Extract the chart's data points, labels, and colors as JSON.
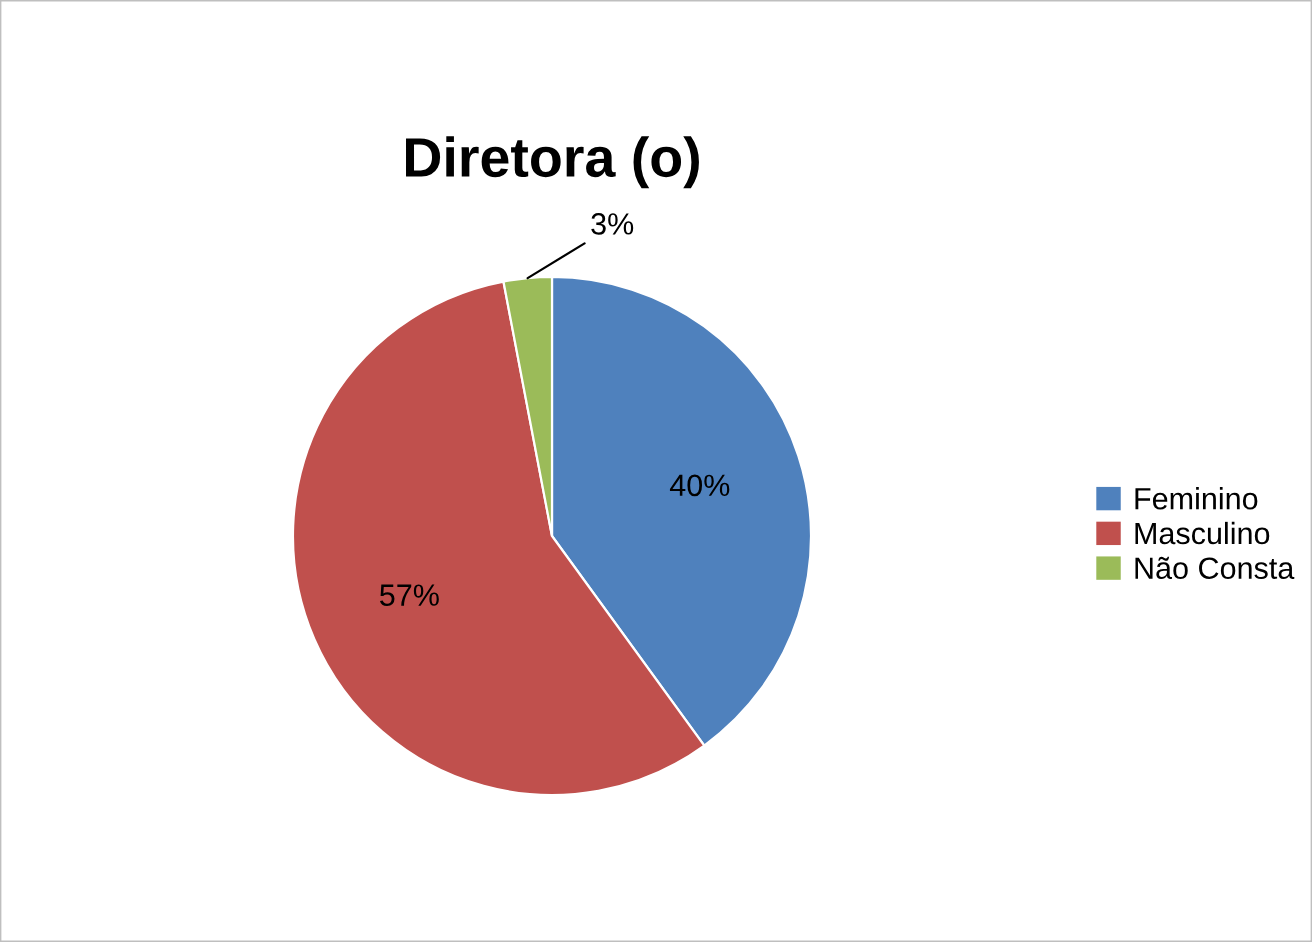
{
  "chart_data": {
    "type": "pie",
    "title": "Diretora (o)",
    "categories": [
      "Feminino",
      "Masculino",
      "Não Consta"
    ],
    "values": [
      40,
      57,
      3
    ],
    "colors": [
      "#4f81bd",
      "#c0504d",
      "#9bbb59"
    ],
    "value_labels": [
      "40%",
      "57%",
      "3%"
    ],
    "legend": "right"
  }
}
